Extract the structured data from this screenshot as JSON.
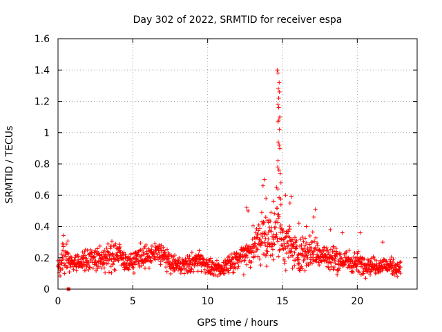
{
  "chart_data": {
    "type": "scatter",
    "title": "Day 302 of 2022, SRMTID for receiver espa",
    "xlabel": "GPS time / hours",
    "ylabel": "SRMTID / TECUs",
    "xlim": [
      0,
      24
    ],
    "ylim": [
      0,
      1.6
    ],
    "xticks": [
      0,
      5,
      10,
      15,
      20
    ],
    "yticks": [
      0,
      0.2,
      0.4,
      0.6,
      0.8,
      1,
      1.2,
      1.4,
      1.6
    ],
    "ytick_labels": [
      "0",
      "0.2",
      "0.4",
      "0.6",
      "0.8",
      "1",
      "1.2",
      "1.4",
      "1.6"
    ],
    "grid": true,
    "marker": "plus",
    "series_color": "#ff0000",
    "range_hours": [
      0,
      22.9
    ],
    "envelope": [
      [
        0.0,
        0.14,
        0.06
      ],
      [
        0.3,
        0.2,
        0.1
      ],
      [
        0.5,
        0.26,
        0.12
      ],
      [
        0.8,
        0.17,
        0.06
      ],
      [
        1.5,
        0.17,
        0.05
      ],
      [
        2.0,
        0.2,
        0.08
      ],
      [
        3.0,
        0.19,
        0.07
      ],
      [
        3.5,
        0.2,
        0.08
      ],
      [
        4.0,
        0.23,
        0.1
      ],
      [
        4.5,
        0.17,
        0.05
      ],
      [
        5.0,
        0.17,
        0.05
      ],
      [
        5.5,
        0.22,
        0.07
      ],
      [
        6.0,
        0.2,
        0.06
      ],
      [
        6.8,
        0.24,
        0.08
      ],
      [
        7.5,
        0.16,
        0.05
      ],
      [
        8.5,
        0.15,
        0.05
      ],
      [
        9.5,
        0.19,
        0.06
      ],
      [
        10.0,
        0.15,
        0.05
      ],
      [
        10.5,
        0.12,
        0.04
      ],
      [
        11.0,
        0.13,
        0.05
      ],
      [
        11.5,
        0.18,
        0.06
      ],
      [
        12.0,
        0.18,
        0.06
      ],
      [
        12.5,
        0.24,
        0.1
      ],
      [
        13.0,
        0.25,
        0.1
      ],
      [
        13.5,
        0.33,
        0.15
      ],
      [
        14.0,
        0.32,
        0.15
      ],
      [
        14.3,
        0.35,
        0.18
      ],
      [
        14.7,
        0.42,
        0.25
      ],
      [
        15.0,
        0.3,
        0.15
      ],
      [
        15.5,
        0.28,
        0.12
      ],
      [
        16.0,
        0.22,
        0.1
      ],
      [
        17.0,
        0.25,
        0.1
      ],
      [
        18.0,
        0.2,
        0.08
      ],
      [
        19.0,
        0.18,
        0.07
      ],
      [
        20.0,
        0.17,
        0.06
      ],
      [
        21.0,
        0.15,
        0.05
      ],
      [
        22.0,
        0.15,
        0.05
      ],
      [
        22.9,
        0.13,
        0.04
      ]
    ],
    "spikes": [
      [
        14.65,
        1.4
      ],
      [
        14.7,
        1.38
      ],
      [
        14.78,
        1.32
      ],
      [
        14.72,
        1.28
      ],
      [
        14.8,
        1.26
      ],
      [
        14.75,
        1.22
      ],
      [
        14.7,
        1.18
      ],
      [
        14.75,
        1.16
      ],
      [
        14.82,
        1.1
      ],
      [
        14.7,
        1.07
      ],
      [
        14.76,
        1.08
      ],
      [
        14.8,
        1.02
      ],
      [
        14.72,
        0.94
      ],
      [
        14.78,
        0.92
      ],
      [
        14.82,
        0.9
      ],
      [
        14.7,
        0.82
      ],
      [
        14.68,
        0.78
      ],
      [
        14.76,
        0.76
      ],
      [
        14.85,
        0.74
      ],
      [
        14.9,
        0.68
      ],
      [
        13.8,
        0.7
      ],
      [
        13.7,
        0.66
      ],
      [
        14.6,
        0.65
      ],
      [
        14.7,
        0.64
      ],
      [
        15.6,
        0.59
      ],
      [
        15.5,
        0.55
      ],
      [
        12.6,
        0.52
      ],
      [
        12.7,
        0.5
      ],
      [
        17.2,
        0.51
      ],
      [
        17.1,
        0.46
      ],
      [
        14.4,
        0.56
      ],
      [
        14.9,
        0.54
      ],
      [
        13.9,
        0.58
      ],
      [
        15.2,
        0.6
      ],
      [
        16.1,
        0.42
      ],
      [
        16.6,
        0.4
      ],
      [
        18.2,
        0.38
      ],
      [
        19.0,
        0.36
      ],
      [
        20.2,
        0.36
      ],
      [
        21.7,
        0.3
      ]
    ],
    "low_marker": {
      "x": 0.7,
      "y": 0.0
    },
    "n_points": 1400
  }
}
